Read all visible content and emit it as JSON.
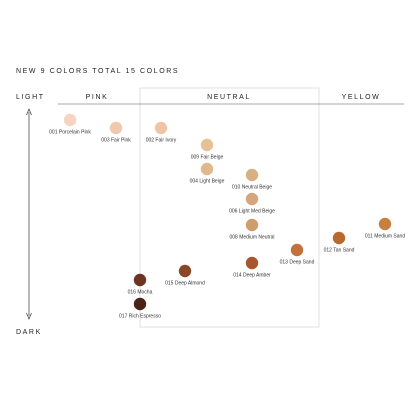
{
  "title": "NEW 9 COLORS TOTAL 15 COLORS",
  "axis": {
    "top": "LIGHT",
    "bottom": "DARK"
  },
  "groups": [
    "PINK",
    "NEUTRAL",
    "YELLOW"
  ],
  "shades": [
    {
      "label": "001 Porcelain Pink",
      "color": "#f6d3c3"
    },
    {
      "label": "003 Fair Pink",
      "color": "#f1c7ad"
    },
    {
      "label": "002 Fair Ivory",
      "color": "#f0c5a6"
    },
    {
      "label": "009 Fair Beige",
      "color": "#e8c096"
    },
    {
      "label": "004 Light Beige",
      "color": "#e0b88c"
    },
    {
      "label": "010 Neutral Beige",
      "color": "#d9b084"
    },
    {
      "label": "006 Light Med Beige",
      "color": "#d5a67a"
    },
    {
      "label": "008 Medium Neutral",
      "color": "#cf9c6c"
    },
    {
      "label": "014 Deep Amber",
      "color": "#a9552e"
    },
    {
      "label": "013 Deep Sand",
      "color": "#c0713c"
    },
    {
      "label": "012 Tan Sand",
      "color": "#b8692f"
    },
    {
      "label": "011 Medium Sand",
      "color": "#c8803f"
    },
    {
      "label": "015 Deep Almond",
      "color": "#8a4728"
    },
    {
      "label": "016 Mocha",
      "color": "#6e3422"
    },
    {
      "label": "017 Rich Espresso",
      "color": "#4a2318"
    }
  ]
}
